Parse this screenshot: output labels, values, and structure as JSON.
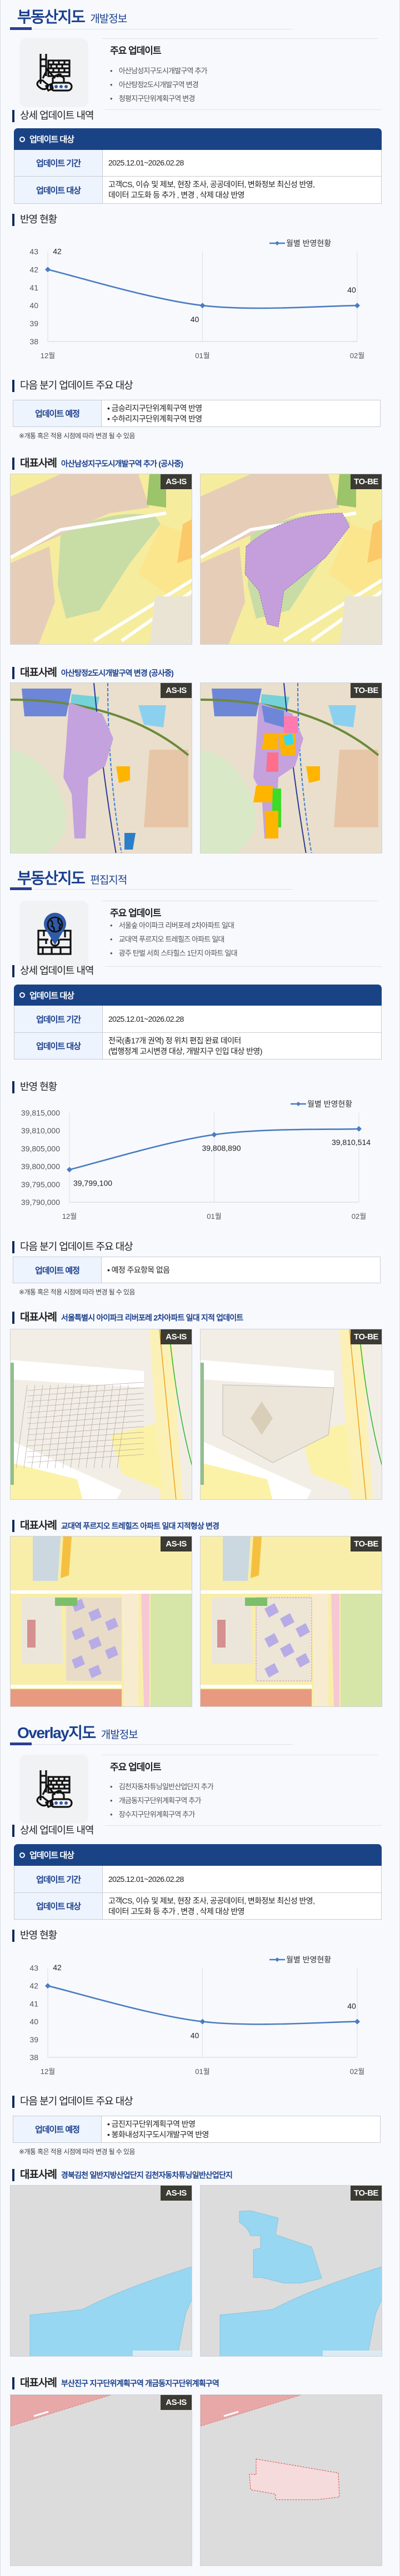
{
  "sections": [
    {
      "title_main": "부동산지도",
      "title_sub": "개발정보",
      "icon": "construction-crane-icon",
      "main_updates": {
        "heading": "주요 업데이트",
        "items": [
          "아산남성지구도시개발구역 추가",
          "아산탕정2도시개발구역 변경",
          "청평지구단위계획구역 변경"
        ]
      },
      "detail": {
        "heading": "상세 업데이트 내역",
        "table_header": "업데이트 대상",
        "rows": [
          {
            "label": "업데이트 기간",
            "lines": [
              "2025.12.01~2026.02.28"
            ]
          },
          {
            "label": "업데이트 대상",
            "lines": [
              "고객CS, 이슈 및 제보, 현장 조사, 공공데이터, 변화정보 최신성 반영,",
              "데이터 고도화 등 추가 , 변경 , 삭제 대상 반영"
            ]
          }
        ]
      },
      "status": {
        "heading": "반영 현황"
      },
      "next": {
        "heading": "다음 분기 업데이트 주요 대상",
        "label": "업데이트 예정",
        "items": [
          "• 금승리지구단위계획구역 반영",
          "• 수하리지구단위계획구역 반영"
        ],
        "note": "※개통 혹은 적용 시점에 따라 변경 될 수 있음"
      },
      "cases": [
        {
          "prefix": "대표사례",
          "title": "아산남성지구도시개발구역 추가 (공사중)",
          "as_is": "AS-IS",
          "to_be": "TO-BE"
        },
        {
          "prefix": "대표사례",
          "title": "아산탕정2도시개발구역 변경 (공사중)",
          "as_is": "AS-IS",
          "to_be": "TO-BE"
        }
      ]
    },
    {
      "title_main": "부동산지도",
      "title_sub": "편집지적",
      "icon": "map-pin-globe-icon",
      "main_updates": {
        "heading": "주요 업데이트",
        "items": [
          "서울숲 아이파크 리버포레 2차아파트 일대",
          "교대역 푸르지오 트레힐즈 아파트 일대",
          "광주 탄벌 서희 스타힐스 1단지 아파트 일대"
        ]
      },
      "detail": {
        "heading": "상세 업데이트 내역",
        "table_header": "업데이트 대상",
        "rows": [
          {
            "label": "업데이트 기간",
            "lines": [
              "2025.12.01~2026.02.28"
            ]
          },
          {
            "label": "업데이트 대상",
            "lines": [
              "전국(총17개 권역) 정 위치 편집 완료 데이터",
              "(법행정계 고시변경 대상, 개발지구 인입 대상 반영)"
            ]
          }
        ]
      },
      "status": {
        "heading": "반영 현황"
      },
      "next": {
        "heading": "다음 분기 업데이트 주요 대상",
        "label": "업데이트 예정",
        "items": [
          "• 예정 주요항목 없음"
        ],
        "note": "※개통 혹은 적용 시점에 따라 변경 될 수 있음"
      },
      "cases": [
        {
          "prefix": "대표사례",
          "title": "서울특별시 아이파크 리버포레 2차아파트 일대 지적 업데이트",
          "as_is": "AS-IS",
          "to_be": "TO-BE"
        },
        {
          "prefix": "대표사례",
          "title": "교대역 푸르지오 트레힐즈 아파트 일대 지적형상 변경",
          "as_is": "AS-IS",
          "to_be": "TO-BE"
        }
      ]
    },
    {
      "title_main": "Overlay지도",
      "title_sub": "개발정보",
      "icon": "construction-crane-icon",
      "main_updates": {
        "heading": "주요 업데이트",
        "items": [
          "김천자동차튜닝일반산업단지 추가",
          "개금동지구단위계획구역 추가",
          "장수지구단위계획구역 추가"
        ]
      },
      "detail": {
        "heading": "상세 업데이트 내역",
        "table_header": "업데이트 대상",
        "rows": [
          {
            "label": "업데이트 기간",
            "lines": [
              "2025.12.01~2026.02.28"
            ]
          },
          {
            "label": "업데이트 대상",
            "lines": [
              "고객CS, 이슈 및 제보, 현장 조사, 공공데이터, 변화정보 최신성 반영,",
              "데이터 고도화 등 추가 , 변경 , 삭제 대상 반영"
            ]
          }
        ]
      },
      "status": {
        "heading": "반영 현황"
      },
      "next": {
        "heading": "다음 분기 업데이트 주요 대상",
        "label": "업데이트 예정",
        "items": [
          "• 금진지구단위계획구역 반영",
          "• 봉화내성지구도시개발구역 반영"
        ],
        "note": "※개통 혹은 적용 시점에 따라 변경 될 수 있음"
      },
      "cases": [
        {
          "prefix": "대표사례",
          "title": "경북김천 일반지방산업단지 김천자동차튜닝일반산업단지",
          "as_is": "AS-IS",
          "to_be": "TO-BE"
        },
        {
          "prefix": "대표사례",
          "title": "부산진구 지구단위계획구역 개금동지구단위계획구역",
          "as_is": "AS-IS",
          "to_be": null
        }
      ]
    }
  ],
  "colors": {
    "brand_navy": "#1b3f8c",
    "table_header": "#1a4385",
    "series_line": "#4a7cc0"
  },
  "chart_data": [
    {
      "type": "line",
      "categories": [
        "12월",
        "01월",
        "02월"
      ],
      "series": [
        {
          "name": "월별 반영현황",
          "values": [
            42,
            40,
            40
          ]
        }
      ],
      "ylim": [
        38,
        43
      ],
      "yticks": [
        38,
        39,
        40,
        41,
        42,
        43
      ],
      "legend": "top-right",
      "grid": "vertical"
    },
    {
      "type": "line",
      "categories": [
        "12월",
        "01월",
        "02월"
      ],
      "series": [
        {
          "name": "월별 반영현황",
          "values": [
            39799100,
            39808890,
            39810514
          ]
        }
      ],
      "ylim": [
        39790000,
        39815000
      ],
      "yticks": [
        39790000,
        39795000,
        39800000,
        39805000,
        39810000,
        39815000
      ],
      "legend": "top-right",
      "grid": "vertical"
    },
    {
      "type": "line",
      "categories": [
        "12월",
        "01월",
        "02월"
      ],
      "series": [
        {
          "name": "월별 반영현황",
          "values": [
            42,
            40,
            40
          ]
        }
      ],
      "ylim": [
        38,
        43
      ],
      "yticks": [
        38,
        39,
        40,
        41,
        42,
        43
      ],
      "legend": "top-right",
      "grid": "vertical"
    }
  ]
}
